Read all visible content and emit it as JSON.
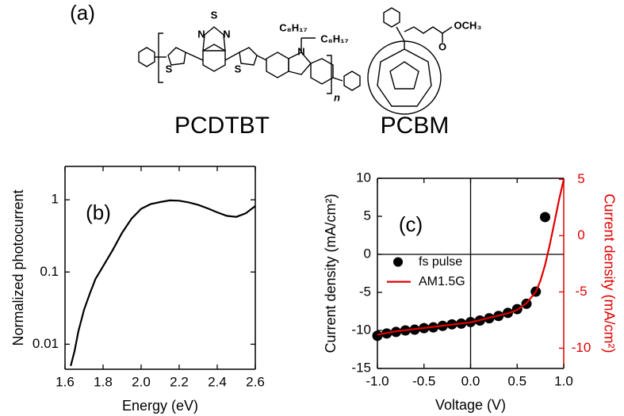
{
  "panel_label": "(a)",
  "molecules": [
    {
      "name": "PCDTBT",
      "atoms": [
        "N",
        "S",
        "N",
        "S",
        "S",
        "N",
        "C₈H₁₇",
        "C₈H₁₇",
        "n"
      ]
    },
    {
      "name": "PCBM",
      "atoms": [
        "O",
        "OCH₃"
      ]
    }
  ],
  "chart_data": [
    {
      "type": "line",
      "annotation": "(b)",
      "xlabel": "Energy (eV)",
      "ylabel": "Normalized photocurrent",
      "ylog": true,
      "xlim": [
        1.6,
        2.6
      ],
      "ylim": [
        0.0045,
        2.9
      ],
      "xticks": [
        1.6,
        1.8,
        {
          "value": 2,
          "label": "2.0"
        },
        2.2,
        2.4,
        2.6
      ],
      "yticks": [
        0.01,
        0.1,
        1
      ],
      "x": [
        1.63,
        1.65,
        1.67,
        1.7,
        1.73,
        1.76,
        1.8,
        1.85,
        1.9,
        1.95,
        2.0,
        2.05,
        2.1,
        2.15,
        2.2,
        2.25,
        2.3,
        2.35,
        2.4,
        2.45,
        2.5,
        2.55,
        2.6
      ],
      "series": [
        {
          "color": "#000000",
          "values": [
            0.005,
            0.008,
            0.015,
            0.03,
            0.05,
            0.08,
            0.12,
            0.2,
            0.35,
            0.55,
            0.75,
            0.87,
            0.93,
            0.98,
            0.97,
            0.92,
            0.85,
            0.76,
            0.67,
            0.6,
            0.58,
            0.65,
            0.82
          ]
        }
      ]
    },
    {
      "type": "scatter",
      "annotation": "(c)",
      "xlabel": "Voltage (V)",
      "ylabel": "Current density (mA/cm²)",
      "y2label": "Current density (mA/cm²)",
      "y2_color": "#e00000",
      "zero_lines": true,
      "legend": "left",
      "xlim": [
        -1,
        1
      ],
      "ylim": [
        -15,
        10
      ],
      "y2lim": [
        -11.8,
        5.1
      ],
      "xticks": [
        {
          "value": -1,
          "label": "-1.0"
        },
        -0.5,
        {
          "value": 0,
          "label": "0.0"
        },
        0.5,
        {
          "value": 1,
          "label": "1.0"
        }
      ],
      "yticks": [
        10,
        5,
        0,
        -5,
        -10,
        -15
      ],
      "y2ticks": [
        5,
        0,
        -5,
        -10
      ],
      "series": [
        {
          "name": "fs pulse",
          "type": "scatter",
          "color": "#000000",
          "x": [
            -1.0,
            -0.9,
            -0.8,
            -0.7,
            -0.6,
            -0.5,
            -0.4,
            -0.3,
            -0.2,
            -0.1,
            0.0,
            0.1,
            0.2,
            0.3,
            0.4,
            0.5,
            0.6,
            0.7,
            0.8
          ],
          "values": [
            -10.7,
            -10.4,
            -10.2,
            -10.0,
            -9.9,
            -9.7,
            -9.6,
            -9.4,
            -9.2,
            -9.1,
            -8.9,
            -8.7,
            -8.4,
            -8.1,
            -7.7,
            -7.2,
            -6.5,
            -4.9,
            4.9
          ]
        },
        {
          "name": "AM1.5G",
          "type": "line",
          "axis": "y2",
          "color": "#e00000",
          "x": [
            -1.0,
            -0.8,
            -0.6,
            -0.4,
            -0.2,
            0.0,
            0.2,
            0.4,
            0.5,
            0.6,
            0.7,
            0.75,
            0.8,
            0.85,
            0.9,
            0.95,
            1.0
          ],
          "values": [
            -8.8,
            -8.5,
            -8.3,
            -8.1,
            -7.9,
            -7.7,
            -7.3,
            -6.9,
            -6.6,
            -6.0,
            -5.0,
            -4.0,
            -2.6,
            -0.8,
            1.2,
            3.2,
            5.0
          ]
        }
      ]
    }
  ]
}
